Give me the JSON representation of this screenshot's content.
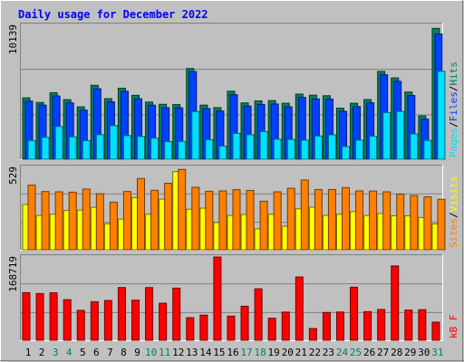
{
  "chart_data": {
    "type": "bar",
    "title": "Daily usage for December 2022",
    "colors": {
      "background": "#c0c0c0",
      "title": "#0000ff",
      "hits": "#00805c",
      "files": "#0040ff",
      "pages": "#00e0ff",
      "visits": "#ffff00",
      "sites": "#ff8000",
      "kbytes": "#ff0000",
      "weekday_label": "#000000",
      "weekend_label": "#00805c"
    },
    "categories": [
      "1",
      "2",
      "3",
      "4",
      "5",
      "6",
      "7",
      "8",
      "9",
      "10",
      "11",
      "12",
      "13",
      "14",
      "15",
      "16",
      "17",
      "18",
      "19",
      "20",
      "21",
      "22",
      "23",
      "24",
      "25",
      "26",
      "27",
      "28",
      "29",
      "30",
      "31"
    ],
    "weekend_days": [
      "3",
      "4",
      "10",
      "11",
      "17",
      "18",
      "24",
      "25",
      "31"
    ],
    "panels": [
      {
        "id": "hits-files-pages",
        "ymax_label": "10139",
        "ylim": [
          0,
          10139
        ],
        "legend": [
          {
            "text": "Pages",
            "color": "#00e0ff"
          },
          {
            "text": "/",
            "color": "#000000"
          },
          {
            "text": "Files",
            "color": "#0040ff"
          },
          {
            "text": "/",
            "color": "#000000"
          },
          {
            "text": "Hits",
            "color": "#00805c"
          }
        ],
        "series": [
          {
            "name": "Hits",
            "color": "#00805c",
            "values": [
              4650,
              4300,
              5040,
              4510,
              3970,
              5600,
              4590,
              5380,
              4840,
              4330,
              4160,
              4140,
              6870,
              4100,
              3910,
              5150,
              4270,
              4420,
              4440,
              4240,
              4930,
              4850,
              4810,
              3870,
              4240,
              4520,
              6650,
              6160,
              5090,
              3280,
              9910
            ]
          },
          {
            "name": "Files",
            "color": "#0040ff",
            "values": [
              4400,
              4100,
              4790,
              4270,
              3720,
              5340,
              4350,
              5150,
              4580,
              4090,
              3900,
              3890,
              6640,
              3840,
              3650,
              4890,
              4030,
              4150,
              4180,
              3970,
              4690,
              4570,
              4560,
              3630,
              3990,
              4280,
              6400,
              5900,
              4830,
              3040,
              9490
            ]
          },
          {
            "name": "Pages",
            "color": "#00e0ff",
            "values": [
              1420,
              1660,
              2480,
              1700,
              1410,
              1860,
              2550,
              1790,
              1730,
              1600,
              1340,
              1350,
              3610,
              1480,
              1000,
              1960,
              1860,
              2100,
              1520,
              1500,
              1450,
              1760,
              1850,
              960,
              1450,
              1750,
              3540,
              3620,
              1920,
              1430,
              6660
            ]
          }
        ]
      },
      {
        "id": "visits-sites",
        "ymax_label": "529",
        "ylim": [
          0,
          529
        ],
        "legend": [
          {
            "text": "Sites",
            "color": "#ff8000"
          },
          {
            "text": "/",
            "color": "#000000"
          },
          {
            "text": "Visits",
            "color": "#ffff00"
          }
        ],
        "series": [
          {
            "name": "Visits",
            "color": "#ffff00",
            "values": [
              291,
              220,
              228,
              252,
              255,
              272,
              167,
              197,
              335,
              228,
              325,
              502,
              260,
              267,
              175,
              220,
              226,
              134,
              228,
              151,
              263,
              273,
              221,
              228,
              245,
              220,
              233,
              218,
              218,
              207,
              166
            ]
          },
          {
            "name": "Sites",
            "color": "#ff8000",
            "values": [
              415,
              374,
              372,
              370,
              390,
              360,
              306,
              374,
              458,
              382,
              427,
              516,
              401,
              376,
              378,
              386,
              381,
              312,
              372,
              395,
              448,
              387,
              387,
              399,
              378,
              377,
              372,
              357,
              348,
              340,
              324
            ]
          }
        ]
      },
      {
        "id": "kbytes",
        "ymax_label": "168719",
        "ylim": [
          0,
          168719
        ],
        "legend": [
          {
            "text": "kB F",
            "color": "#ff0000"
          }
        ],
        "series": [
          {
            "name": "kB F",
            "color": "#ff0000",
            "values": [
              96500,
              94700,
              96200,
              82200,
              60600,
              78100,
              80600,
              106900,
              81300,
              106800,
              75100,
              105700,
              45800,
              50900,
              168700,
              49000,
              69000,
              104300,
              44800,
              57100,
              128300,
              23700,
              56300,
              57300,
              107600,
              58000,
              62400,
              150600,
              61100,
              62000,
              36700
            ]
          }
        ]
      }
    ]
  }
}
